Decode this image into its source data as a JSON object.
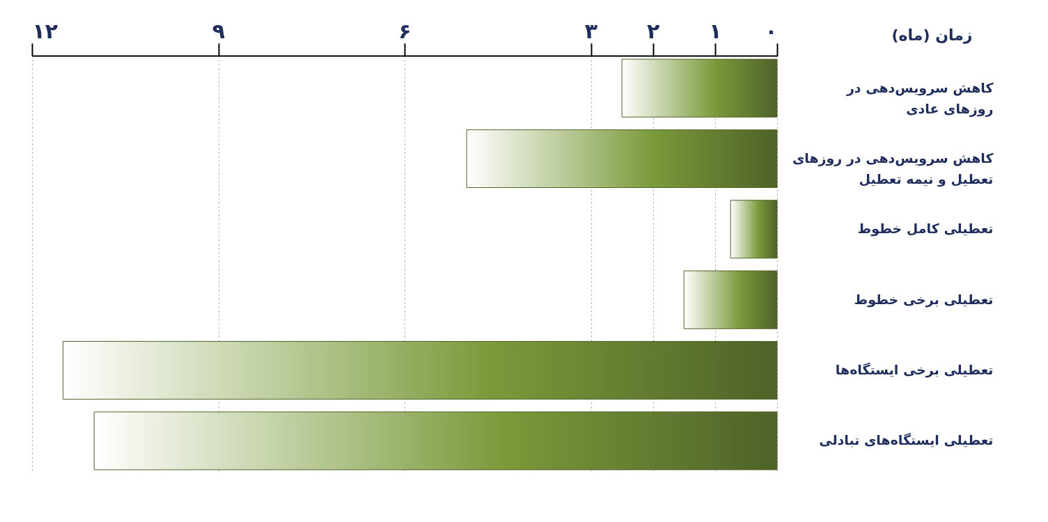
{
  "chart_data": {
    "type": "bar",
    "orientation": "horizontal",
    "relative": false,
    "xlabel": "زمان (ماه)",
    "categories": [
      "کاهش سرویس‌دهی در\nروزهای عادی",
      "کاهش سرویس‌دهی در روزهای\nتعطیل و نیمه تعطیل",
      "تعطیلی کامل خطوط",
      "تعطیلی برخی خطوط",
      "تعطیلی برخی ایستگاه‌ها",
      "تعطیلی ایستگاه‌های تبادلی"
    ],
    "series": [
      {
        "color": "#4f6228",
        "values": [
          2.5,
          5,
          0.75,
          1.5,
          11.5,
          11
        ]
      }
    ],
    "xlim": [
      12,
      0
    ],
    "xticks": [
      {
        "value": 12,
        "label": "۱۲"
      },
      {
        "value": 9,
        "label": "۹"
      },
      {
        "value": 6,
        "label": "۶"
      },
      {
        "value": 3,
        "label": "۳"
      },
      {
        "value": 2,
        "label": "۲"
      },
      {
        "value": 1,
        "label": "۱"
      },
      {
        "value": 0,
        "label": "۰"
      }
    ],
    "grid": "x"
  }
}
